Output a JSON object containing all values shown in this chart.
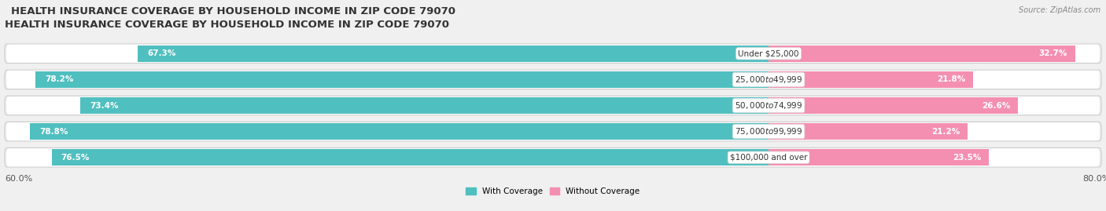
{
  "title": "HEALTH INSURANCE COVERAGE BY HOUSEHOLD INCOME IN ZIP CODE 79070",
  "source": "Source: ZipAtlas.com",
  "categories": [
    "Under $25,000",
    "$25,000 to $49,999",
    "$50,000 to $74,999",
    "$75,000 to $99,999",
    "$100,000 and over"
  ],
  "with_coverage": [
    67.3,
    78.2,
    73.4,
    78.8,
    76.5
  ],
  "without_coverage": [
    32.7,
    21.8,
    26.6,
    21.2,
    23.5
  ],
  "color_with": "#50bfbf",
  "color_without": "#f48fb1",
  "color_row_bg": "#e8e8e8",
  "color_row_inner": "#ffffff",
  "legend_with": "With Coverage",
  "legend_without": "Without Coverage",
  "background_color": "#f0f0f0",
  "title_fontsize": 9.5,
  "source_fontsize": 7,
  "pct_label_fontsize": 7.5,
  "cat_label_fontsize": 7.5,
  "tick_fontsize": 8,
  "bar_height": 0.62,
  "left_tick_label": "60.0%",
  "right_tick_label": "80.0%"
}
